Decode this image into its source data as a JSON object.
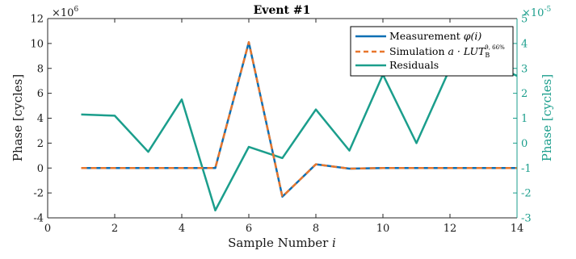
{
  "chart_data": {
    "type": "line",
    "title": "Event #1",
    "xlabel": "Sample Number i",
    "xlabel_text": "Sample Number ",
    "xlabel_var": "i",
    "ylabel_left": "Phase [cycles]",
    "ylabel_right": "Phase [cycles]",
    "left_multiplier": "×10⁶",
    "left_multiplier_base": "×10",
    "left_multiplier_exp": "6",
    "right_multiplier": "×10⁻⁵",
    "right_multiplier_base": "×10",
    "right_multiplier_exp": "-5",
    "xlim": [
      0,
      14
    ],
    "ylim_left": [
      -4,
      12
    ],
    "ylim_right": [
      -3,
      5
    ],
    "xticks": [
      0,
      2,
      4,
      6,
      8,
      10,
      12,
      14
    ],
    "yticks_left": [
      -4,
      -2,
      0,
      2,
      4,
      6,
      8,
      10,
      12
    ],
    "yticks_right": [
      -3,
      -2,
      -1,
      0,
      1,
      2,
      3,
      4,
      5
    ],
    "grid": false,
    "legend_position": "top-right",
    "series": [
      {
        "name": "Measurement φ(i)",
        "axis": "left",
        "color": "#0b6fb4",
        "style": "solid",
        "x": [
          1,
          2,
          3,
          4,
          5,
          6,
          7,
          8,
          9,
          10,
          11,
          12,
          13,
          14
        ],
        "y": [
          0,
          0,
          0,
          0,
          0,
          10.1,
          -2.3,
          0.3,
          -0.05,
          0,
          0,
          0,
          0,
          0
        ]
      },
      {
        "name": "Simulation a · LUT_B^{9,66%}",
        "axis": "left",
        "color": "#e8762c",
        "style": "dashed",
        "x": [
          1,
          2,
          3,
          4,
          5,
          6,
          7,
          8,
          9,
          10,
          11,
          12,
          13,
          14
        ],
        "y": [
          0,
          0,
          0,
          0,
          0,
          10.1,
          -2.3,
          0.3,
          -0.05,
          0,
          0,
          0,
          0,
          0
        ]
      },
      {
        "name": "Residuals",
        "axis": "right",
        "color": "#1b9e8c",
        "style": "solid",
        "x": [
          1,
          2,
          3,
          4,
          5,
          6,
          7,
          8,
          9,
          10,
          11,
          12,
          13,
          14
        ],
        "y": [
          1.15,
          1.1,
          -0.35,
          1.75,
          -2.7,
          -0.15,
          -0.6,
          1.35,
          -0.3,
          2.75,
          0.0,
          3.0,
          3.3,
          2.7
        ]
      }
    ],
    "legend": {
      "measurement": {
        "text": "Measurement ",
        "math": "φ(i)"
      },
      "simulation": {
        "text": "Simulation ",
        "math": "a · LUT",
        "sub": "B",
        "sup": "9, 66%"
      },
      "residuals": {
        "text": "Residuals"
      }
    }
  }
}
